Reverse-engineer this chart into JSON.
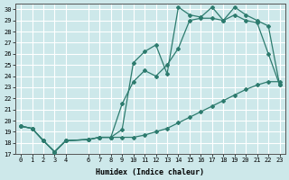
{
  "xlabel": "Humidex (Indice chaleur)",
  "bg_color": "#cde8ea",
  "grid_color": "#ffffff",
  "line_color": "#2d7b6e",
  "xlim": [
    -0.5,
    23.5
  ],
  "ylim": [
    17,
    30.5
  ],
  "yticks": [
    17,
    18,
    19,
    20,
    21,
    22,
    23,
    24,
    25,
    26,
    27,
    28,
    29,
    30
  ],
  "xticks": [
    0,
    1,
    2,
    3,
    4,
    6,
    7,
    8,
    9,
    10,
    11,
    12,
    13,
    14,
    15,
    16,
    17,
    18,
    19,
    20,
    21,
    22,
    23
  ],
  "line1_x": [
    0,
    1,
    2,
    3,
    4,
    6,
    7,
    8,
    9,
    10,
    11,
    12,
    13,
    14,
    15,
    16,
    17,
    18,
    19,
    20,
    21,
    22,
    23
  ],
  "line1_y": [
    19.5,
    19.3,
    18.2,
    17.2,
    18.2,
    18.3,
    18.5,
    18.5,
    18.5,
    18.5,
    18.7,
    19.0,
    19.3,
    19.8,
    20.3,
    20.8,
    21.3,
    21.8,
    22.3,
    22.8,
    23.2,
    23.5,
    23.5
  ],
  "line2_x": [
    0,
    1,
    2,
    3,
    4,
    6,
    7,
    8,
    9,
    10,
    11,
    12,
    13,
    14,
    15,
    16,
    17,
    18,
    19,
    20,
    21,
    22,
    23
  ],
  "line2_y": [
    19.5,
    19.3,
    18.2,
    17.2,
    18.2,
    18.3,
    18.5,
    18.5,
    21.5,
    23.5,
    24.5,
    24.0,
    25.0,
    26.5,
    29.0,
    29.2,
    29.2,
    29.0,
    29.5,
    29.0,
    28.8,
    26.0,
    23.2
  ],
  "line3_x": [
    0,
    1,
    2,
    3,
    4,
    6,
    7,
    8,
    9,
    10,
    11,
    12,
    13,
    14,
    15,
    16,
    17,
    18,
    19,
    20,
    21,
    22,
    23
  ],
  "line3_y": [
    19.5,
    19.3,
    18.2,
    17.2,
    18.2,
    18.3,
    18.5,
    18.5,
    19.2,
    25.2,
    26.2,
    26.8,
    24.2,
    30.2,
    29.5,
    29.3,
    30.2,
    29.0,
    30.2,
    29.5,
    29.0,
    28.5,
    23.2
  ],
  "marker": "D",
  "markersize": 2.0,
  "linewidth": 0.9
}
